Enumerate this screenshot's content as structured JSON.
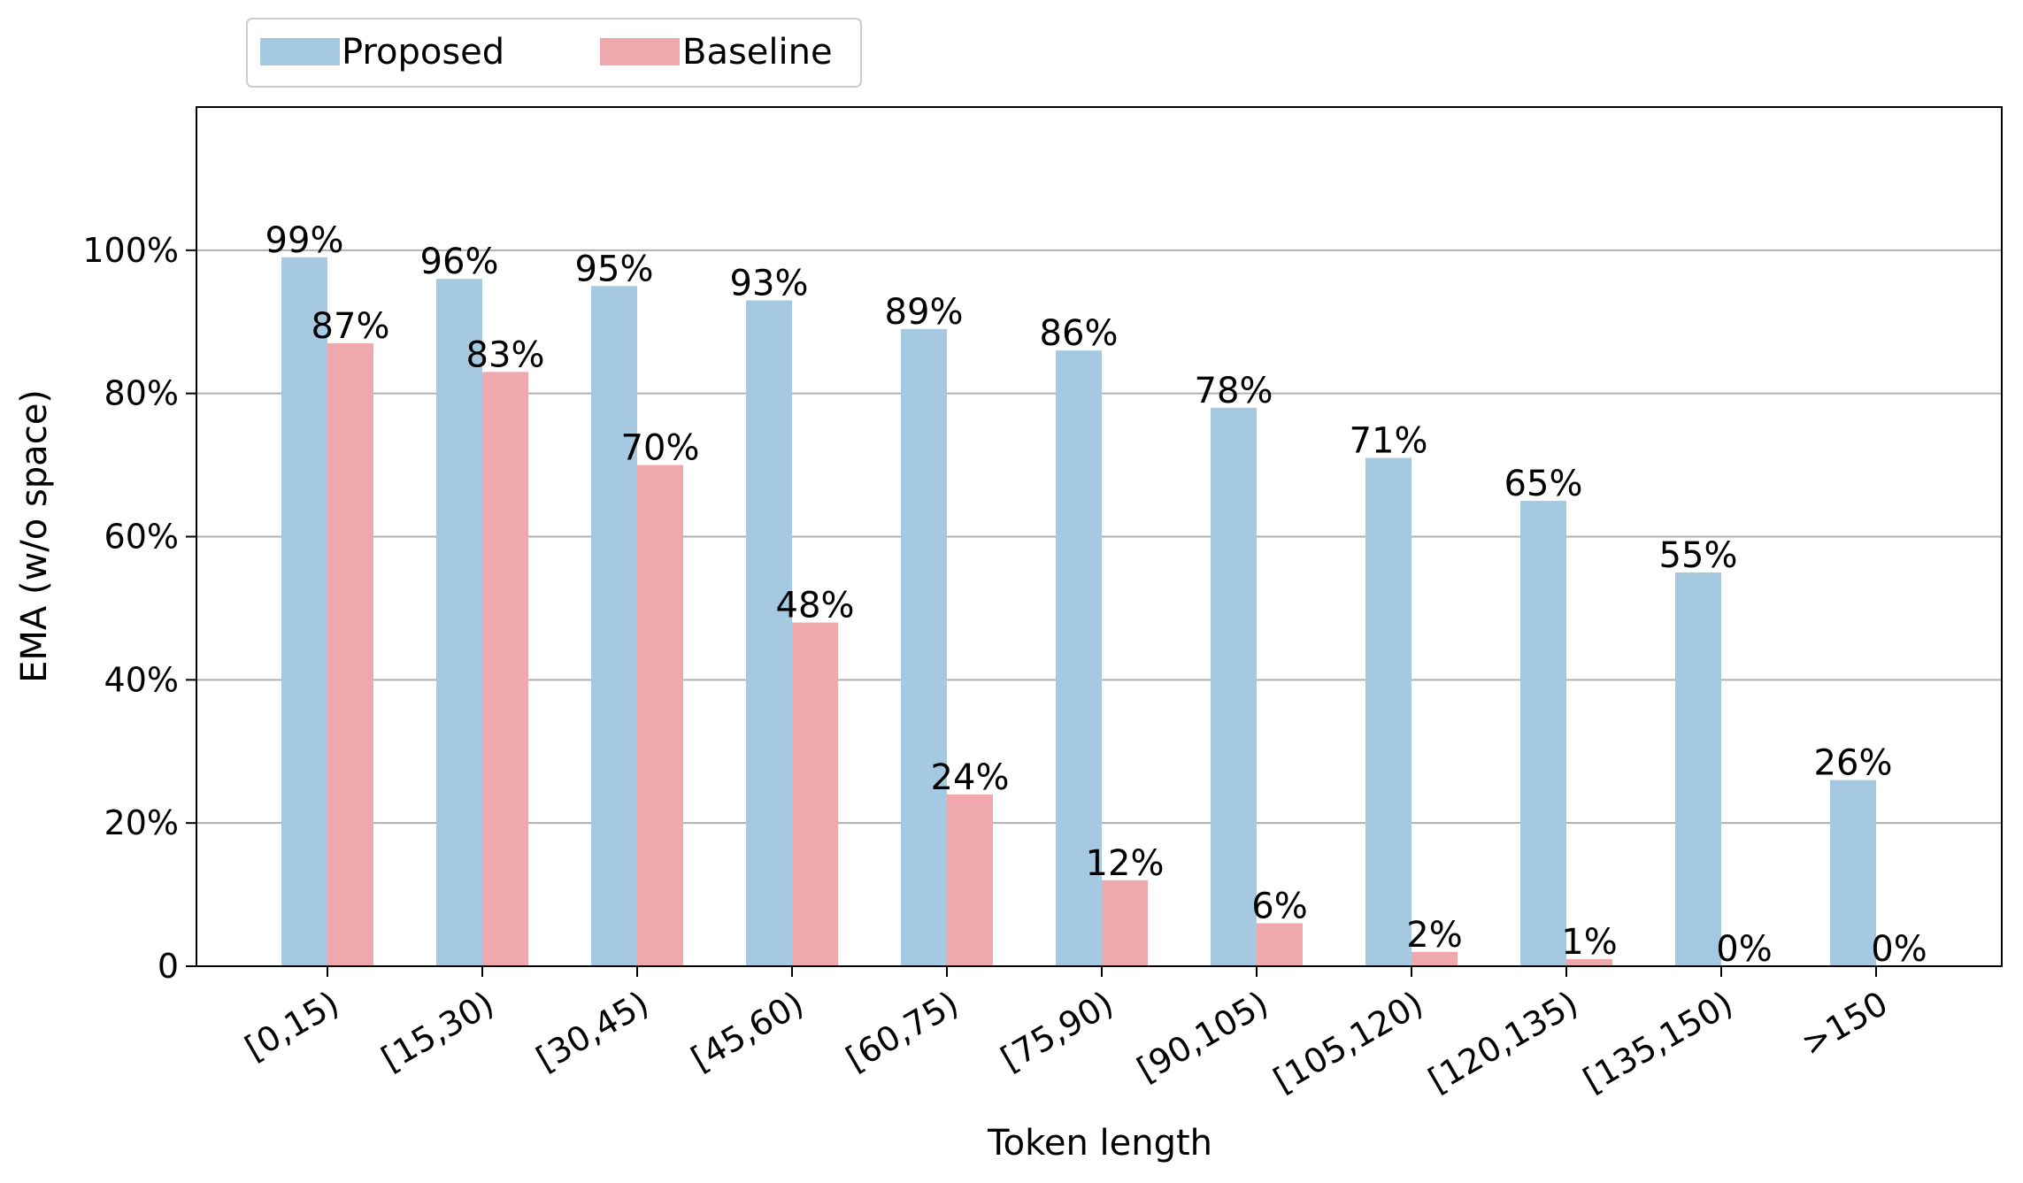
{
  "chart_data": {
    "type": "bar",
    "title": "",
    "xlabel": "Token length",
    "ylabel": "EMA (w/o space)",
    "categories": [
      "[0,15)",
      "[15,30)",
      "[30,45)",
      "[45,60)",
      "[60,75)",
      "[75,90)",
      "[90,105)",
      "[105,120)",
      "[120,135)",
      "[135,150)",
      ">150"
    ],
    "series": [
      {
        "name": "Proposed",
        "color": "#a6c9e2",
        "values": [
          99,
          96,
          95,
          93,
          89,
          86,
          78,
          71,
          65,
          55,
          26
        ],
        "labels": [
          "99%",
          "96%",
          "95%",
          "93%",
          "89%",
          "86%",
          "78%",
          "71%",
          "65%",
          "55%",
          "26%"
        ]
      },
      {
        "name": "Baseline",
        "color": "#efa9ac",
        "values": [
          87,
          83,
          70,
          48,
          24,
          12,
          6,
          2,
          1,
          0,
          0
        ],
        "labels": [
          "87%",
          "83%",
          "70%",
          "48%",
          "24%",
          "12%",
          "6%",
          "2%",
          "1%",
          "0%",
          "0%"
        ]
      }
    ],
    "ylim": [
      0,
      120
    ],
    "yticks": [
      0,
      20,
      40,
      60,
      80,
      100
    ],
    "ytick_labels": [
      "0",
      "20%",
      "40%",
      "60%",
      "80%",
      "100%"
    ],
    "grid": "horizontal",
    "legend_position": "top-left, above plot"
  }
}
